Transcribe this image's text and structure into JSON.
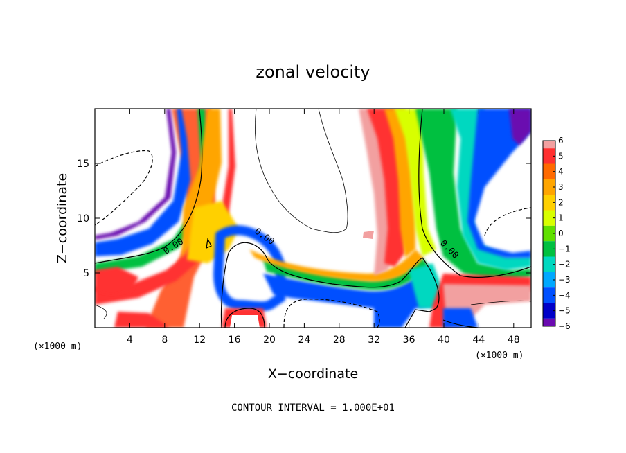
{
  "chart_data": {
    "type": "heatmap",
    "title": "zonal velocity",
    "xlabel": "X−coordinate",
    "ylabel": "Z−coordinate",
    "x_unit": "(×1000 m)",
    "y_unit": "(×1000 m)",
    "xlim": [
      0,
      50
    ],
    "ylim": [
      0,
      20
    ],
    "x_ticks": [
      4,
      8,
      12,
      16,
      20,
      24,
      28,
      32,
      36,
      40,
      44,
      48
    ],
    "y_ticks": [
      5,
      10,
      15
    ],
    "x_tick_labels": [
      "4",
      "8",
      "12",
      "16",
      "20",
      "24",
      "28",
      "32",
      "36",
      "40",
      "44",
      "48"
    ],
    "y_tick_labels": [
      "5",
      "10",
      "15"
    ],
    "colorbar": {
      "min": -6,
      "max": 6,
      "ticks": [
        6,
        5,
        4,
        3,
        2,
        1,
        0,
        -1,
        -2,
        -3,
        -4,
        -5,
        -6
      ],
      "tick_labels": [
        "6",
        "5",
        "4",
        "3",
        "2",
        "1",
        "0",
        "−1",
        "−2",
        "−3",
        "−4",
        "−5",
        "−6"
      ],
      "colors": [
        "#f2a0a0",
        "#ff3030",
        "#ff6a00",
        "#ffa500",
        "#ffd000",
        "#d8ff00",
        "#60e000",
        "#00c040",
        "#00d8c0",
        "#00a8ff",
        "#0050ff",
        "#0000c8",
        "#6a0ab0"
      ]
    },
    "contour_labels": [
      "0.00",
      "0.00",
      "0.00"
    ],
    "note": "CONTOUR INTERVAL = 1.000E+01",
    "grid": false
  },
  "colors": {
    "background": "#ffffff",
    "axis": "#000000",
    "plot_bg": "#ffffff"
  }
}
